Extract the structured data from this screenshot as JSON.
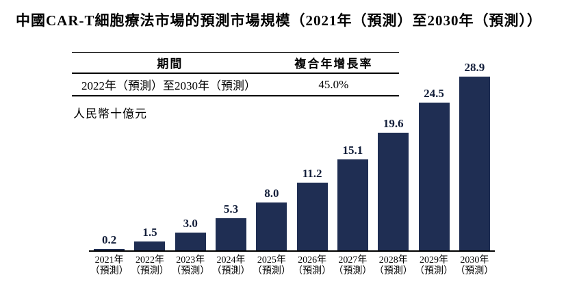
{
  "title": "中國CAR-T細胞療法市場的預測市場規模（2021年（預測）至2030年（預測））",
  "cagr_table": {
    "headers": [
      "期間",
      "複合年增長率"
    ],
    "row": {
      "period": "2022年（預測）至2030年（預測）",
      "cagr": "45.0%"
    }
  },
  "unit_label": "人民幣十億元",
  "chart_data": {
    "type": "bar",
    "title": "中國CAR-T細胞療法市場的預測市場規模（2021年（預測）至2030年（預測））",
    "categories": [
      "2021年",
      "2022年",
      "2023年",
      "2024年",
      "2025年",
      "2026年",
      "2027年",
      "2028年",
      "2029年",
      "2030年"
    ],
    "category_note": "（預測）",
    "values": [
      0.2,
      1.5,
      3.0,
      5.3,
      8.0,
      11.2,
      15.1,
      19.6,
      24.5,
      28.9
    ],
    "xlabel": "",
    "ylabel": "人民幣十億元",
    "ylim": [
      0,
      30
    ],
    "grid": false,
    "legend": false,
    "bar_color": "#1f2e53",
    "value_label_color": "#101c38",
    "axis_color": "#000000",
    "cagr_2022_2030": "45.0%"
  }
}
